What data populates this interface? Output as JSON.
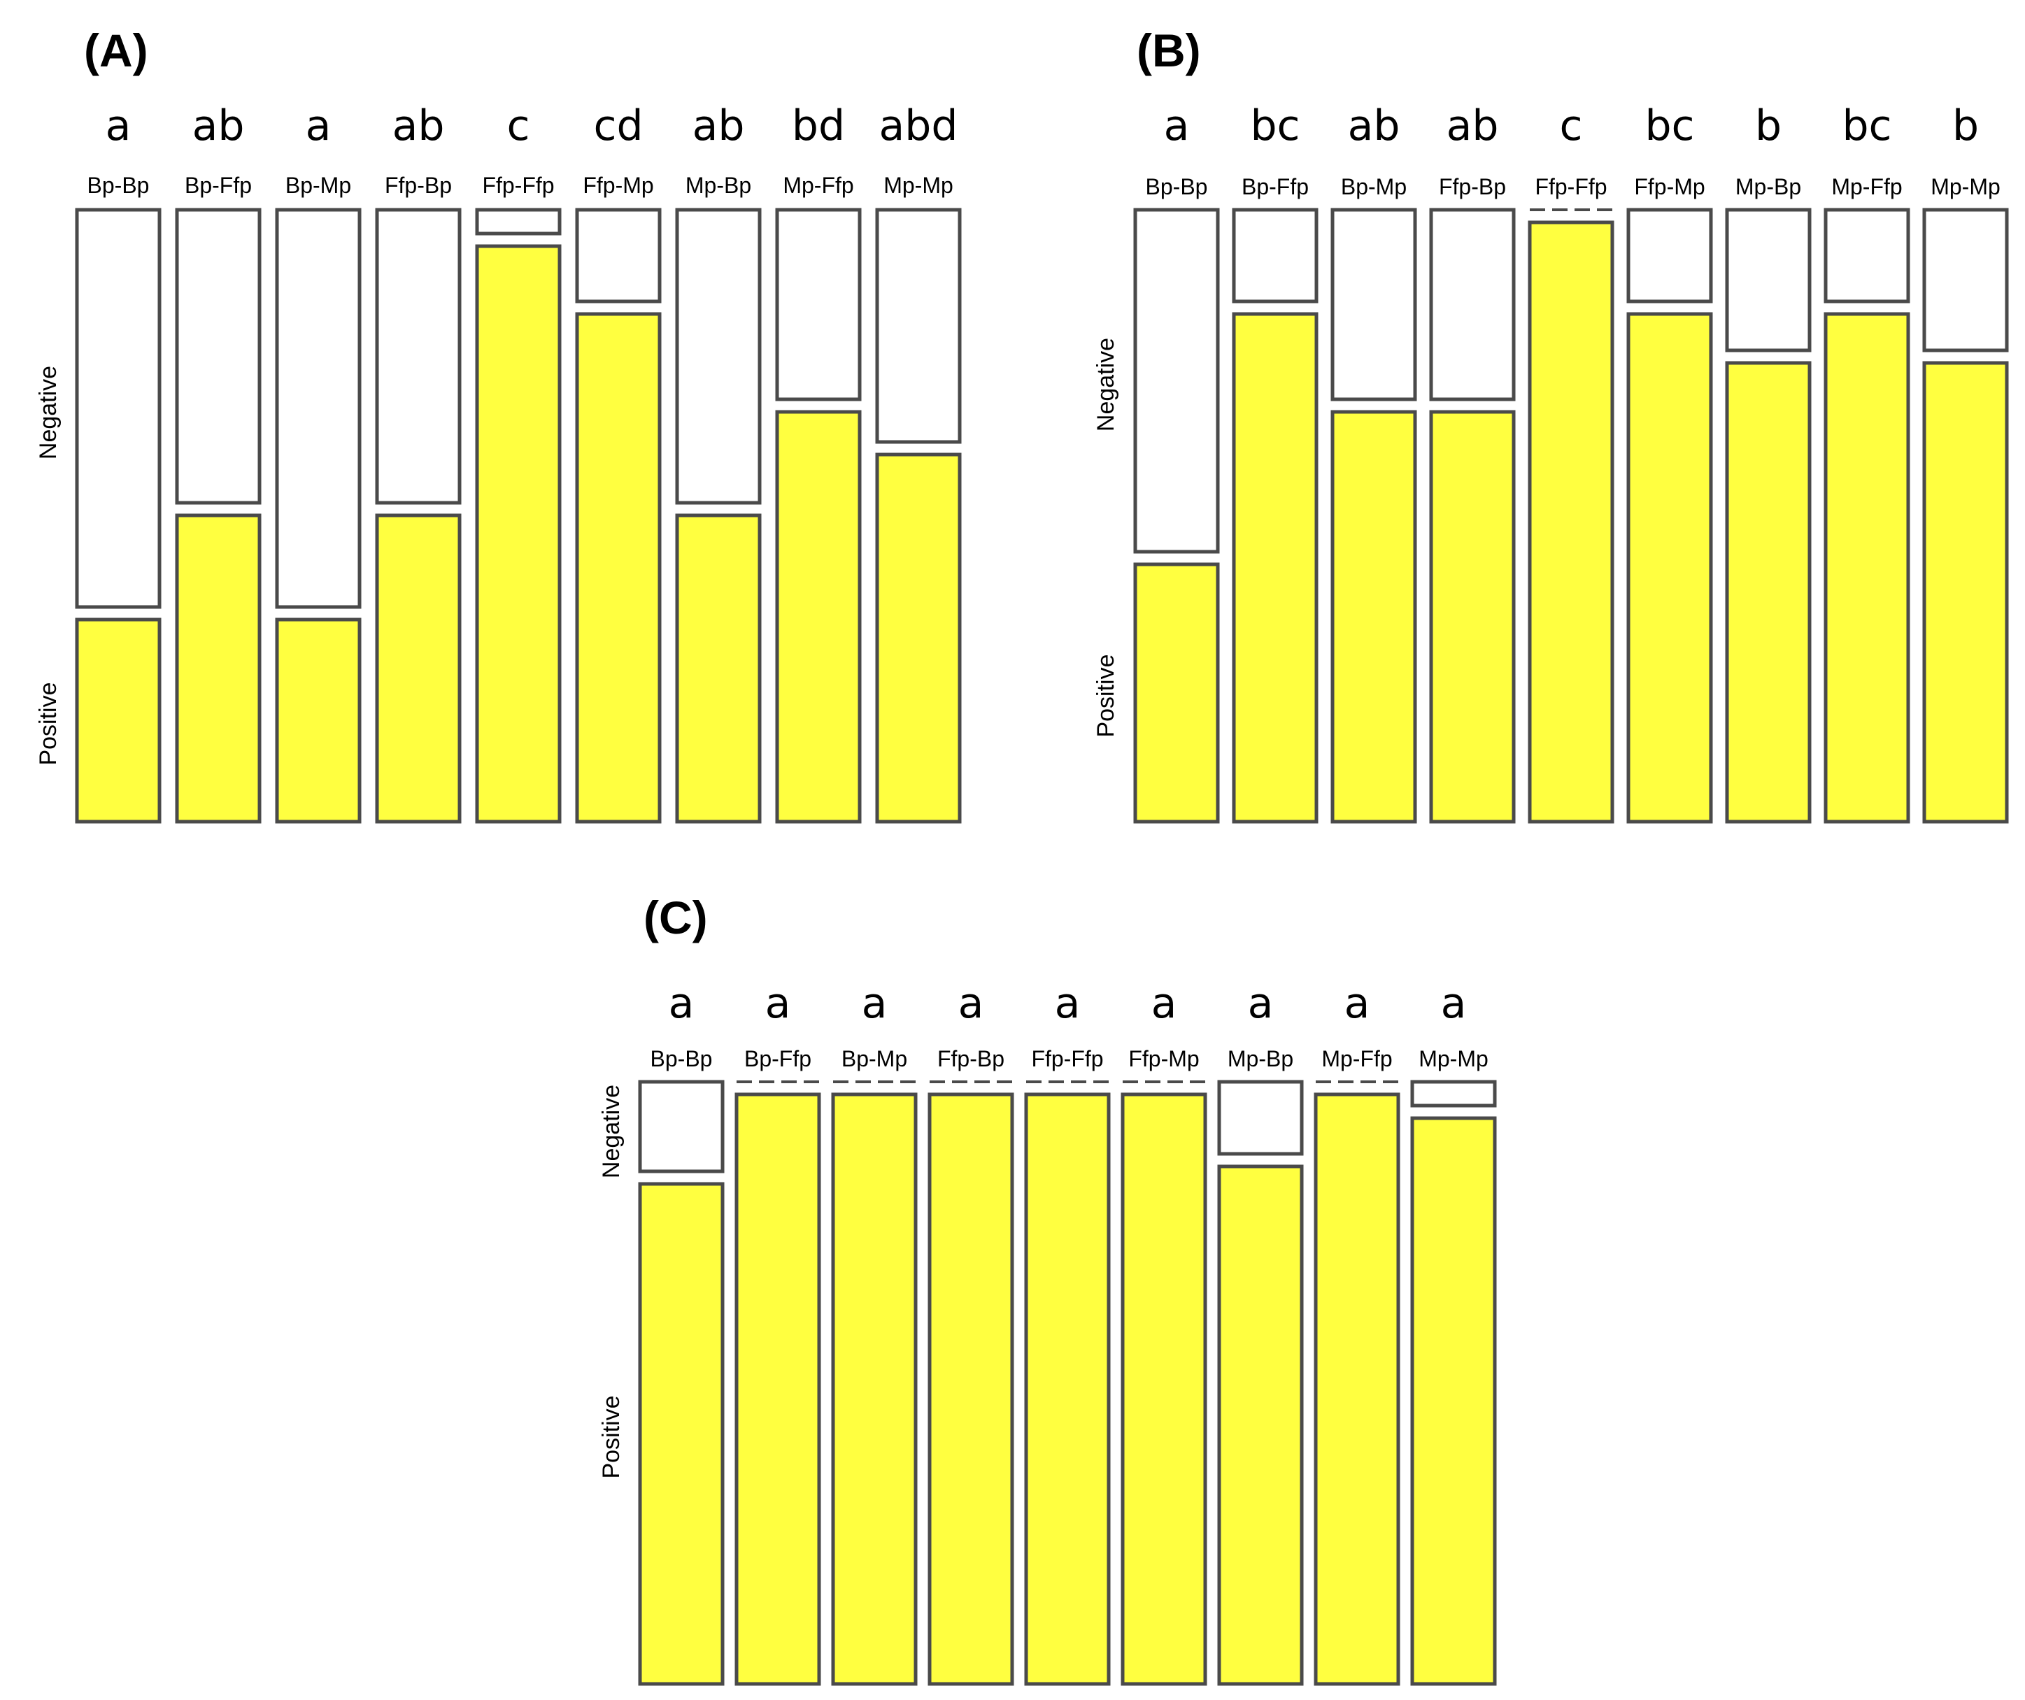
{
  "colors": {
    "positive": "#ffff40",
    "negative": "#ffffff",
    "outline": "#4a4a4a"
  },
  "chart_data": [
    {
      "type": "bar",
      "title": "(A)",
      "ylabel_negative": "Negative",
      "ylabel_positive": "Positive",
      "categories": [
        "Bp-Bp",
        "Bp-Ffp",
        "Bp-Mp",
        "Ffp-Bp",
        "Ffp-Ffp",
        "Ffp-Mp",
        "Mp-Bp",
        "Mp-Ffp",
        "Mp-Mp"
      ],
      "letters": [
        "a",
        "ab",
        "a",
        "ab",
        "c",
        "cd",
        "ab",
        "bd",
        "abd"
      ],
      "positive_fraction": [
        0.33,
        0.5,
        0.33,
        0.5,
        0.94,
        0.83,
        0.5,
        0.67,
        0.6
      ]
    },
    {
      "type": "bar",
      "title": "(B)",
      "ylabel_negative": "Negative",
      "ylabel_positive": "Positive",
      "categories": [
        "Bp-Bp",
        "Bp-Ffp",
        "Bp-Mp",
        "Ffp-Bp",
        "Ffp-Ffp",
        "Ffp-Mp",
        "Mp-Bp",
        "Mp-Ffp",
        "Mp-Mp"
      ],
      "letters": [
        "a",
        "bc",
        "ab",
        "ab",
        "c",
        "bc",
        "b",
        "bc",
        "b"
      ],
      "positive_fraction": [
        0.42,
        0.83,
        0.67,
        0.67,
        1.0,
        0.83,
        0.75,
        0.83,
        0.75
      ]
    },
    {
      "type": "bar",
      "title": "(C)",
      "ylabel_negative": "Negative",
      "ylabel_positive": "Positive",
      "categories": [
        "Bp-Bp",
        "Bp-Ffp",
        "Bp-Mp",
        "Ffp-Bp",
        "Ffp-Ffp",
        "Ffp-Mp",
        "Mp-Bp",
        "Mp-Ffp",
        "Mp-Mp"
      ],
      "letters": [
        "a",
        "a",
        "a",
        "a",
        "a",
        "a",
        "a",
        "a",
        "a"
      ],
      "positive_fraction": [
        0.83,
        1.0,
        1.0,
        1.0,
        1.0,
        1.0,
        0.86,
        1.0,
        0.94
      ]
    }
  ]
}
